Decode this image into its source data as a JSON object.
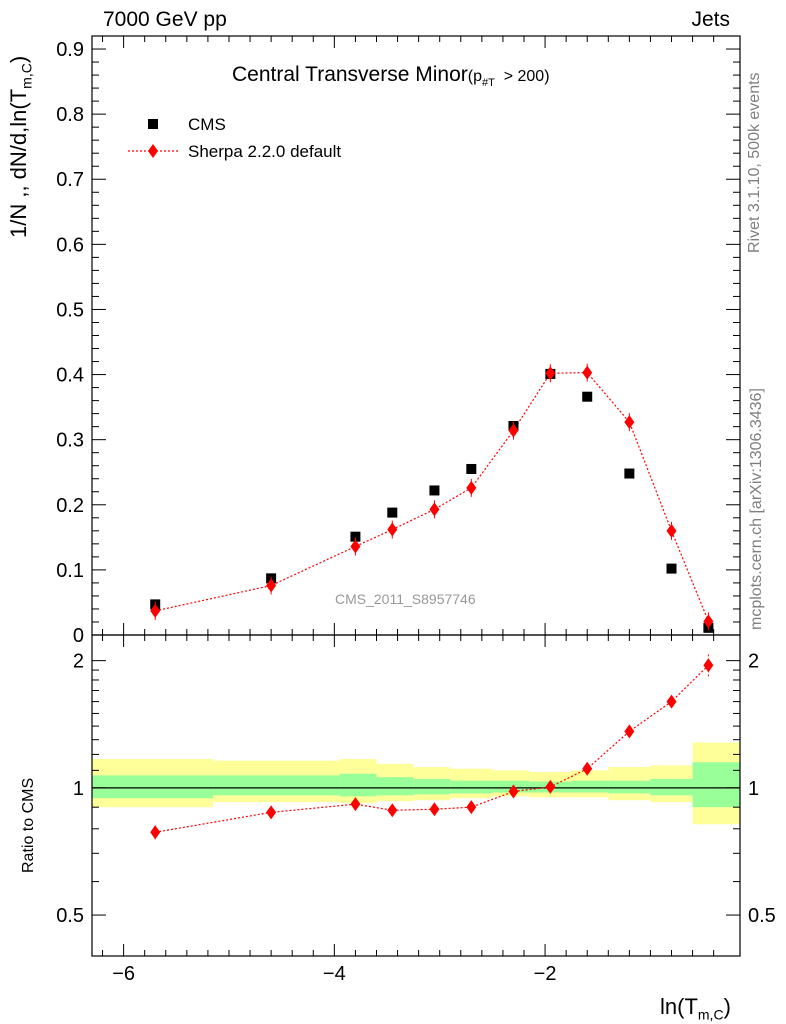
{
  "header": {
    "left": "7000 GeV pp",
    "right": "Jets"
  },
  "side_text": {
    "rivet": "Rivet 3.1.10,  500k events",
    "mcplots": "mcplots.cern.ch [arXiv:1306.3436]"
  },
  "colors": {
    "data": "#000000",
    "mc": "#ff0000",
    "band_inner": "#99ff99",
    "band_outer": "#ffff99"
  },
  "chart_data": [
    {
      "type": "scatter",
      "title": "Central Transverse Minor",
      "title_cut": "(p",
      "title_cut_sub": "#T",
      "title_cut_tail": "> 200)",
      "ylabel": "1/N ,, dN/d,ln(T",
      "ylabel_sub": "m,C",
      "ylabel_tail": ")",
      "watermark": "CMS_2011_S8957746",
      "ylim": [
        0,
        0.92
      ],
      "yticks": [
        "0",
        "0.1",
        "0.2",
        "0.3",
        "0.4",
        "0.5",
        "0.6",
        "0.7",
        "0.8",
        "0.9"
      ],
      "legend_placement": "top-left",
      "series": [
        {
          "name": "CMS",
          "marker": "square",
          "x": [
            -5.7,
            -4.6,
            -3.8,
            -3.45,
            -3.05,
            -2.7,
            -2.3,
            -1.95,
            -1.6,
            -1.2,
            -0.8,
            -0.45
          ],
          "y": [
            0.047,
            0.087,
            0.151,
            0.188,
            0.222,
            0.255,
            0.321,
            0.401,
            0.366,
            0.248,
            0.102,
            0.011
          ]
        },
        {
          "name": "Sherpa 2.2.0 default",
          "marker": "diamond",
          "line": "dotted",
          "x": [
            -5.7,
            -4.6,
            -3.8,
            -3.45,
            -3.05,
            -2.7,
            -2.3,
            -1.95,
            -1.6,
            -1.2,
            -0.8,
            -0.45
          ],
          "y": [
            0.037,
            0.076,
            0.136,
            0.162,
            0.193,
            0.226,
            0.314,
            0.402,
            0.403,
            0.327,
            0.16,
            0.021
          ]
        }
      ]
    },
    {
      "type": "scatter",
      "ylabel": "Ratio to CMS",
      "xlabel": "ln(T",
      "xlabel_sub": "m,C",
      "xlabel_tail": ")",
      "xlim": [
        -6.3,
        -0.15
      ],
      "xticks": [
        "−6",
        "−4",
        "−2"
      ],
      "ylim": [
        0.4,
        2.3
      ],
      "y_scale": "log",
      "yticks": [
        "0.5",
        "1",
        "2"
      ],
      "bands": [
        {
          "x_range": [
            -6.3,
            -5.15
          ],
          "inner": [
            0.945,
            1.07
          ],
          "outer": [
            0.9,
            1.17
          ]
        },
        {
          "x_range": [
            -5.15,
            -3.95
          ],
          "inner": [
            0.96,
            1.07
          ],
          "outer": [
            0.925,
            1.16
          ]
        },
        {
          "x_range": [
            -3.95,
            -3.6
          ],
          "inner": [
            0.955,
            1.08
          ],
          "outer": [
            0.92,
            1.17
          ]
        },
        {
          "x_range": [
            -3.6,
            -3.25
          ],
          "inner": [
            0.96,
            1.06
          ],
          "outer": [
            0.93,
            1.14
          ]
        },
        {
          "x_range": [
            -3.25,
            -2.9
          ],
          "inner": [
            0.965,
            1.05
          ],
          "outer": [
            0.935,
            1.12
          ]
        },
        {
          "x_range": [
            -2.9,
            -2.5
          ],
          "inner": [
            0.97,
            1.04
          ],
          "outer": [
            0.945,
            1.11
          ]
        },
        {
          "x_range": [
            -2.5,
            -2.15
          ],
          "inner": [
            0.975,
            1.04
          ],
          "outer": [
            0.955,
            1.1
          ]
        },
        {
          "x_range": [
            -2.15,
            -1.75
          ],
          "inner": [
            0.975,
            1.035
          ],
          "outer": [
            0.95,
            1.09
          ]
        },
        {
          "x_range": [
            -1.75,
            -1.4
          ],
          "inner": [
            0.975,
            1.04
          ],
          "outer": [
            0.95,
            1.1
          ]
        },
        {
          "x_range": [
            -1.4,
            -1.0
          ],
          "inner": [
            0.97,
            1.04
          ],
          "outer": [
            0.935,
            1.12
          ]
        },
        {
          "x_range": [
            -1.0,
            -0.6
          ],
          "inner": [
            0.96,
            1.05
          ],
          "outer": [
            0.925,
            1.13
          ]
        },
        {
          "x_range": [
            -0.6,
            -0.15
          ],
          "inner": [
            0.9,
            1.15
          ],
          "outer": [
            0.82,
            1.28
          ]
        }
      ],
      "series": [
        {
          "name": "Sherpa 2.2.0 default",
          "x": [
            -5.7,
            -4.6,
            -3.8,
            -3.45,
            -3.05,
            -2.7,
            -2.3,
            -1.95,
            -1.6,
            -1.2,
            -0.8,
            -0.45
          ],
          "y": [
            0.785,
            0.875,
            0.915,
            0.885,
            0.89,
            0.9,
            0.98,
            1.005,
            1.11,
            1.36,
            1.6,
            1.95
          ],
          "err": [
            0.03,
            0.015,
            0.025,
            0.02,
            0.02,
            0.02,
            0.01,
            0.01,
            0.015,
            0.02,
            0.04,
            0.12
          ]
        }
      ]
    }
  ]
}
